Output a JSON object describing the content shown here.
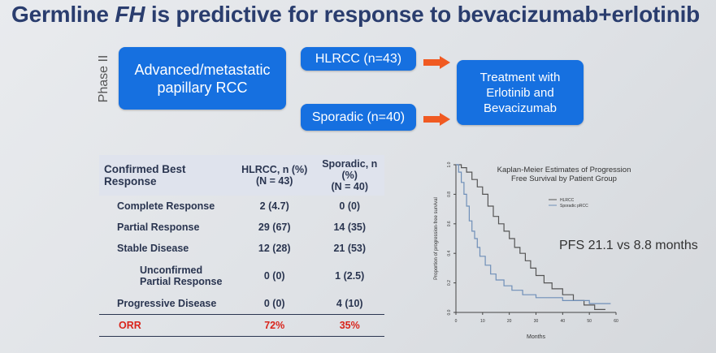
{
  "slide": {
    "title_pre": "Germline ",
    "title_em": "FH",
    "title_post": " is predictive for response to bevacizumab+erlotinib"
  },
  "flow": {
    "phase_label": "Phase II",
    "population_line1": "Advanced/metastatic",
    "population_line2": "papillary RCC",
    "hlrcc_box": "HLRCC (n=43)",
    "sporadic_box": "Sporadic (n=40)",
    "treatment_line1": "Treatment with",
    "treatment_line2": "Erlotinib and",
    "treatment_line3": "Bevacizumab",
    "arrow_color": "#f05a22",
    "box_color": "#1670e0"
  },
  "table": {
    "header": {
      "col1_line1": "Confirmed Best",
      "col1_line2": "Response",
      "col2_line1": "HLRCC, n (%)",
      "col2_line2": "(N = 43)",
      "col3_line1": "Sporadic, n",
      "col3_line2": "(%)",
      "col3_line3": "(N = 40)"
    },
    "rows": [
      {
        "label": "Complete Response",
        "hlrcc": "2 (4.7)",
        "sporadic": "0 (0)"
      },
      {
        "label": "Partial Response",
        "hlrcc": "29 (67)",
        "sporadic": "14 (35)"
      },
      {
        "label": "Stable Disease",
        "hlrcc": "12 (28)",
        "sporadic": "21 (53)"
      },
      {
        "label_line1": "Unconfirmed",
        "label_line2": "Partial Response",
        "hlrcc": "0 (0)",
        "sporadic": "1 (2.5)"
      },
      {
        "label": "Progressive Disease",
        "hlrcc": "0 (0)",
        "sporadic": "4 (10)"
      }
    ],
    "orr": {
      "label": "ORR",
      "hlrcc": "72%",
      "sporadic": "35%"
    },
    "header_bg": "#dfe3ed",
    "orr_color": "#d9241b"
  },
  "pfs_text": "PFS 21.1 vs 8.8 months",
  "chart_data": {
    "type": "line",
    "title_line1": "Kaplan-Meier Estimates of Progression",
    "title_line2": "Free Survival by Patient Group",
    "xlabel": "Months",
    "ylabel": "Proportion of progression-free survival",
    "xlim": [
      0,
      60
    ],
    "ylim": [
      0,
      1.0
    ],
    "x_ticks": [
      "0",
      "10",
      "20",
      "30",
      "40",
      "50",
      "60"
    ],
    "y_ticks": [
      "0.0",
      "0.2",
      "0.4",
      "0.6",
      "0.8",
      "1.0"
    ],
    "legend": [
      "HLRCC",
      "Sporadic pRCC"
    ],
    "legend_position": "top-right",
    "series": [
      {
        "name": "HLRCC",
        "color": "#555555",
        "points": [
          [
            0,
            1.0
          ],
          [
            2,
            1.0
          ],
          [
            2,
            0.98
          ],
          [
            4,
            0.98
          ],
          [
            4,
            0.95
          ],
          [
            6,
            0.95
          ],
          [
            6,
            0.9
          ],
          [
            8,
            0.9
          ],
          [
            8,
            0.85
          ],
          [
            10,
            0.85
          ],
          [
            10,
            0.8
          ],
          [
            12,
            0.8
          ],
          [
            12,
            0.72
          ],
          [
            14,
            0.72
          ],
          [
            14,
            0.65
          ],
          [
            16,
            0.65
          ],
          [
            16,
            0.6
          ],
          [
            18,
            0.6
          ],
          [
            18,
            0.55
          ],
          [
            20,
            0.55
          ],
          [
            20,
            0.5
          ],
          [
            22,
            0.5
          ],
          [
            22,
            0.44
          ],
          [
            24,
            0.44
          ],
          [
            24,
            0.4
          ],
          [
            26,
            0.4
          ],
          [
            26,
            0.35
          ],
          [
            28,
            0.35
          ],
          [
            28,
            0.3
          ],
          [
            30,
            0.3
          ],
          [
            30,
            0.25
          ],
          [
            33,
            0.25
          ],
          [
            33,
            0.2
          ],
          [
            36,
            0.2
          ],
          [
            36,
            0.16
          ],
          [
            40,
            0.16
          ],
          [
            40,
            0.12
          ],
          [
            44,
            0.12
          ],
          [
            44,
            0.08
          ],
          [
            48,
            0.08
          ],
          [
            48,
            0.05
          ],
          [
            52,
            0.05
          ],
          [
            52,
            0.02
          ],
          [
            56,
            0.02
          ]
        ]
      },
      {
        "name": "Sporadic pRCC",
        "color": "#6f8fb8",
        "points": [
          [
            0,
            1.0
          ],
          [
            1,
            1.0
          ],
          [
            1,
            0.95
          ],
          [
            2,
            0.95
          ],
          [
            2,
            0.88
          ],
          [
            3,
            0.88
          ],
          [
            3,
            0.8
          ],
          [
            4,
            0.8
          ],
          [
            4,
            0.72
          ],
          [
            5,
            0.72
          ],
          [
            5,
            0.62
          ],
          [
            6,
            0.62
          ],
          [
            6,
            0.55
          ],
          [
            7,
            0.55
          ],
          [
            7,
            0.5
          ],
          [
            8,
            0.5
          ],
          [
            8,
            0.44
          ],
          [
            9,
            0.44
          ],
          [
            9,
            0.38
          ],
          [
            11,
            0.38
          ],
          [
            11,
            0.32
          ],
          [
            13,
            0.32
          ],
          [
            13,
            0.26
          ],
          [
            15,
            0.26
          ],
          [
            15,
            0.22
          ],
          [
            18,
            0.22
          ],
          [
            18,
            0.18
          ],
          [
            21,
            0.18
          ],
          [
            21,
            0.15
          ],
          [
            25,
            0.15
          ],
          [
            25,
            0.12
          ],
          [
            30,
            0.12
          ],
          [
            30,
            0.1
          ],
          [
            40,
            0.1
          ],
          [
            40,
            0.08
          ],
          [
            50,
            0.08
          ],
          [
            50,
            0.06
          ],
          [
            58,
            0.06
          ]
        ]
      }
    ]
  }
}
